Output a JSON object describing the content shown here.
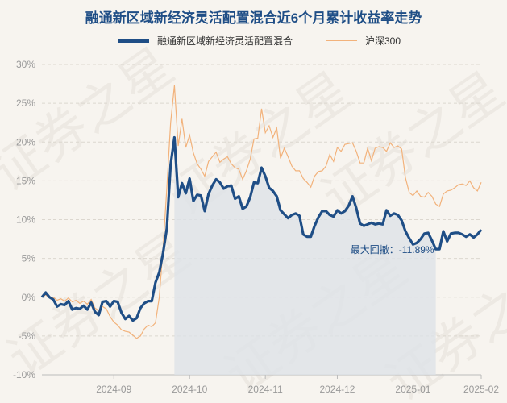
{
  "chart_data": {
    "type": "line",
    "title": "融通新区域新经济灵活配置混合近6个月累计收益率走势",
    "xlabel": "",
    "ylabel": "",
    "ylim": [
      -10,
      30
    ],
    "yticks": [
      "30%",
      "25%",
      "20%",
      "15%",
      "10%",
      "5%",
      "0%",
      "-5%",
      "-10%"
    ],
    "xticks": [
      "2024-09",
      "2024-10",
      "2024-11",
      "2024-12",
      "2025-01",
      "2025-02"
    ],
    "legend_position": "top",
    "grid": true,
    "annotation": "最大回撤：-11.89%",
    "colors": {
      "fund": "#1f4e86",
      "index": "#f2b27b",
      "shade": "#dde2e7"
    },
    "series": [
      {
        "name": "融通新区域新经济灵活配置混合",
        "values": [
          0,
          0.6,
          0,
          -0.3,
          -1.2,
          -0.9,
          -1,
          -0.5,
          -1.6,
          -1.4,
          -1.5,
          -1.1,
          -1.6,
          -0.7,
          -1.9,
          -2.3,
          -0.6,
          -0.5,
          -1.2,
          -0.5,
          -0.6,
          -2,
          -2.8,
          -2.4,
          -3,
          -2.7,
          -1.4,
          -0.8,
          -0.5,
          -0.5,
          1.9,
          3.2,
          5.7,
          8.9,
          17.1,
          20.6,
          12.9,
          14.7,
          13.4,
          15.3,
          12.4,
          13.2,
          13.1,
          11.1,
          13.3,
          14.4,
          15.2,
          14.8,
          14,
          14.3,
          14.4,
          12.7,
          13,
          11.4,
          11.7,
          12.9,
          14.8,
          14.7,
          16.7,
          15.6,
          14.1,
          13.7,
          13,
          11.2,
          10.7,
          10.2,
          10.6,
          10.8,
          10.5,
          8.1,
          7.8,
          7.8,
          9.2,
          10.3,
          11.1,
          11.1,
          10.6,
          10.4,
          11.2,
          10.8,
          11.1,
          11.8,
          13,
          11.5,
          9.5,
          9.2,
          9.4,
          9.6,
          9.4,
          9.5,
          9.4,
          11.2,
          10.5,
          10.8,
          10.6,
          9.9,
          8.5,
          7.6,
          6.8,
          7,
          7.5,
          8.2,
          8.3,
          7.3,
          6.2,
          6.2,
          8.5,
          7.2,
          8.2,
          8.3,
          8.3,
          8.1,
          7.8,
          8.1,
          7.7,
          8.1,
          8.7
        ]
      },
      {
        "name": "沪深300",
        "values": [
          0,
          0.3,
          -0.1,
          0,
          -0.4,
          -0.2,
          -0.5,
          -0.1,
          -0.6,
          -0.4,
          -0.8,
          -0.5,
          -0.9,
          -0.3,
          -1.4,
          -1.7,
          -1.2,
          -1.5,
          -2.5,
          -3.2,
          -3.6,
          -4.2,
          -4.4,
          -4.5,
          -4.9,
          -5.3,
          -5,
          -4.1,
          -3.6,
          -3.8,
          -3.3,
          0,
          6.3,
          14.1,
          22.5,
          27.3,
          19.5,
          23,
          19.3,
          20.9,
          18.6,
          17.2,
          16.5,
          15.6,
          17.5,
          18.1,
          18.7,
          17.4,
          17.8,
          18.1,
          17.2,
          16.7,
          16.5,
          15.2,
          16.3,
          17.8,
          20.4,
          20.5,
          24.3,
          21.2,
          22.1,
          20.6,
          21.8,
          17.9,
          19.2,
          18.1,
          16.9,
          16.3,
          16.3,
          15.3,
          14.8,
          14.2,
          15.6,
          16.2,
          16.3,
          16.9,
          18.4,
          17.5,
          19.3,
          18.8,
          19.7,
          19.8,
          19.9,
          18.8,
          17.3,
          17.3,
          19.2,
          17.6,
          19.2,
          19.4,
          19.3,
          18.8,
          19.9,
          19.3,
          19.5,
          19.1,
          15.4,
          13.5,
          13.1,
          13.7,
          13,
          12.9,
          13.5,
          13,
          12,
          11.7,
          13.3,
          13.7,
          13.8,
          14.1,
          14.5,
          14.6,
          14.4,
          15,
          14.1,
          13.7,
          14.8
        ]
      }
    ]
  }
}
